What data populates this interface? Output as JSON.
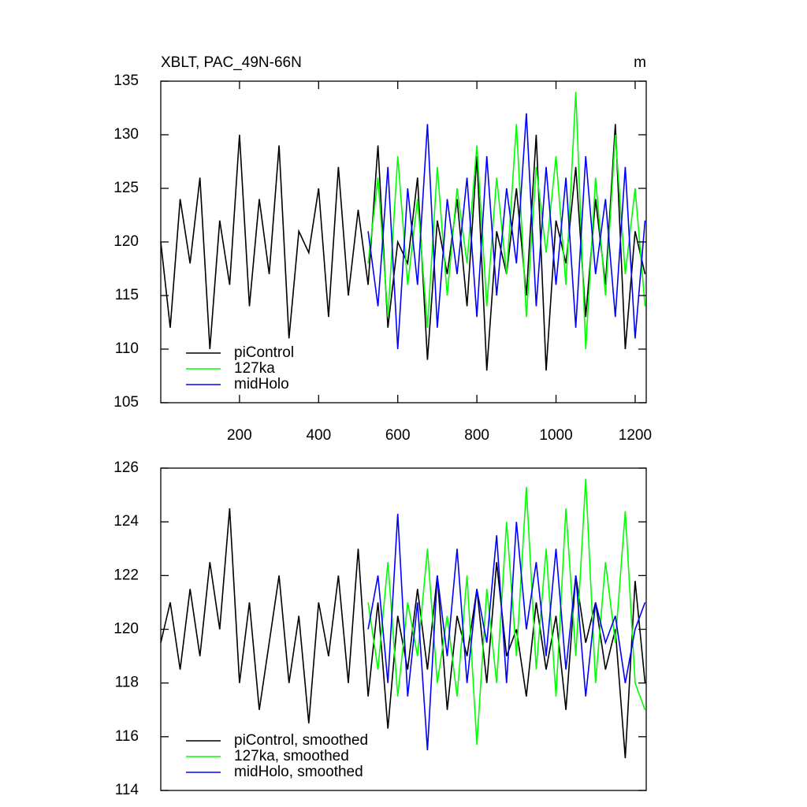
{
  "chart_data": [
    {
      "type": "line",
      "title": "XBLT, PAC_49N-66N",
      "units": "m",
      "xlim": [
        1,
        1228
      ],
      "xticks": [
        200,
        400,
        600,
        800,
        1000,
        1200
      ],
      "ylim": [
        105,
        135
      ],
      "yticks": [
        105,
        110,
        115,
        120,
        125,
        130,
        135
      ],
      "legend": "lower left",
      "series": [
        {
          "name": "piControl",
          "color": "#000000",
          "x": [
            1,
            25,
            50,
            75,
            100,
            125,
            150,
            175,
            200,
            225,
            250,
            275,
            300,
            325,
            350,
            375,
            400,
            425,
            450,
            475,
            500,
            525,
            550,
            575,
            600,
            625,
            650,
            675,
            700,
            725,
            750,
            775,
            800,
            825,
            850,
            875,
            900,
            925,
            950,
            975,
            1000,
            1025,
            1050,
            1075,
            1100,
            1125,
            1150,
            1175,
            1200,
            1225
          ],
          "values": [
            120,
            112,
            124,
            118,
            126,
            110,
            122,
            116,
            130,
            114,
            124,
            117,
            129,
            111,
            121,
            119,
            125,
            113,
            127,
            115,
            123,
            116,
            129,
            112,
            120,
            118,
            126,
            109,
            122,
            117,
            124,
            114,
            128,
            108,
            121,
            117,
            125,
            115,
            130,
            108,
            122,
            118,
            127,
            113,
            124,
            116,
            131,
            110,
            121,
            117
          ]
        },
        {
          "name": "127ka",
          "color": "#00ff00",
          "x": [
            525,
            550,
            575,
            600,
            625,
            650,
            675,
            700,
            725,
            750,
            775,
            800,
            825,
            850,
            875,
            900,
            925,
            950,
            975,
            1000,
            1025,
            1050,
            1075,
            1100,
            1125,
            1150,
            1175,
            1200,
            1225
          ],
          "values": [
            118,
            126,
            113,
            128,
            116,
            124,
            112,
            127,
            115,
            125,
            118,
            129,
            114,
            126,
            117,
            131,
            113,
            127,
            119,
            128,
            116,
            134,
            110,
            126,
            115,
            130,
            117,
            125,
            114
          ]
        },
        {
          "name": "midHolo",
          "color": "#0000ff",
          "x": [
            525,
            550,
            575,
            600,
            625,
            650,
            675,
            700,
            725,
            750,
            775,
            800,
            825,
            850,
            875,
            900,
            925,
            950,
            975,
            1000,
            1025,
            1050,
            1075,
            1100,
            1125,
            1150,
            1175,
            1200,
            1225
          ],
          "values": [
            121,
            114,
            127,
            110,
            125,
            116,
            131,
            112,
            124,
            117,
            126,
            113,
            128,
            115,
            125,
            118,
            132,
            114,
            127,
            116,
            126,
            112,
            128,
            117,
            124,
            113,
            127,
            111,
            122
          ]
        }
      ]
    },
    {
      "type": "line",
      "xlim": [
        1,
        1228
      ],
      "ylim": [
        114,
        126
      ],
      "yticks": [
        114,
        116,
        118,
        120,
        122,
        124,
        126
      ],
      "legend": "lower left",
      "series": [
        {
          "name": "piControl, smoothed",
          "color": "#000000",
          "x": [
            1,
            25,
            50,
            75,
            100,
            125,
            150,
            175,
            200,
            225,
            250,
            275,
            300,
            325,
            350,
            375,
            400,
            425,
            450,
            475,
            500,
            525,
            550,
            575,
            600,
            625,
            650,
            675,
            700,
            725,
            750,
            775,
            800,
            825,
            850,
            875,
            900,
            925,
            950,
            975,
            1000,
            1025,
            1050,
            1075,
            1100,
            1125,
            1150,
            1175,
            1200,
            1225
          ],
          "values": [
            119.5,
            121,
            118.5,
            121.5,
            119,
            122.5,
            120,
            124.5,
            118,
            121,
            117,
            119.5,
            122,
            118,
            120.5,
            116.5,
            121,
            119,
            122,
            118,
            123,
            117.5,
            121,
            116.3,
            120.5,
            118.5,
            121.5,
            118.5,
            122,
            117,
            120.5,
            119,
            121.5,
            118,
            122.5,
            119,
            120,
            117.5,
            121,
            118.5,
            120.5,
            117,
            122,
            119.5,
            121,
            118.5,
            120,
            115.2,
            121.8,
            118
          ]
        },
        {
          "name": "127ka, smoothed",
          "color": "#00ff00",
          "x": [
            525,
            550,
            575,
            600,
            625,
            650,
            675,
            700,
            725,
            750,
            775,
            800,
            825,
            850,
            875,
            900,
            925,
            950,
            975,
            1000,
            1025,
            1050,
            1075,
            1100,
            1125,
            1150,
            1175,
            1200,
            1225
          ],
          "values": [
            121,
            118.5,
            122.5,
            117.5,
            121,
            119,
            123,
            118,
            120.5,
            117.5,
            122,
            115.7,
            121.5,
            118,
            124,
            119,
            125.3,
            118.5,
            123,
            117.5,
            124.5,
            119,
            125.6,
            118,
            122.5,
            119.5,
            124.4,
            118,
            117
          ]
        },
        {
          "name": "midHolo, smoothed",
          "color": "#0000ff",
          "x": [
            525,
            550,
            575,
            600,
            625,
            650,
            675,
            700,
            725,
            750,
            775,
            800,
            825,
            850,
            875,
            900,
            925,
            950,
            975,
            1000,
            1025,
            1050,
            1075,
            1100,
            1125,
            1150,
            1175,
            1200,
            1225
          ],
          "values": [
            120,
            122,
            118,
            124.3,
            117.5,
            121,
            115.5,
            122,
            119,
            123,
            118,
            121.5,
            119.5,
            123.5,
            118,
            124,
            120,
            122.5,
            119,
            123,
            118.5,
            122,
            117.5,
            121,
            119.5,
            120.5,
            118,
            120,
            121
          ]
        }
      ]
    }
  ]
}
